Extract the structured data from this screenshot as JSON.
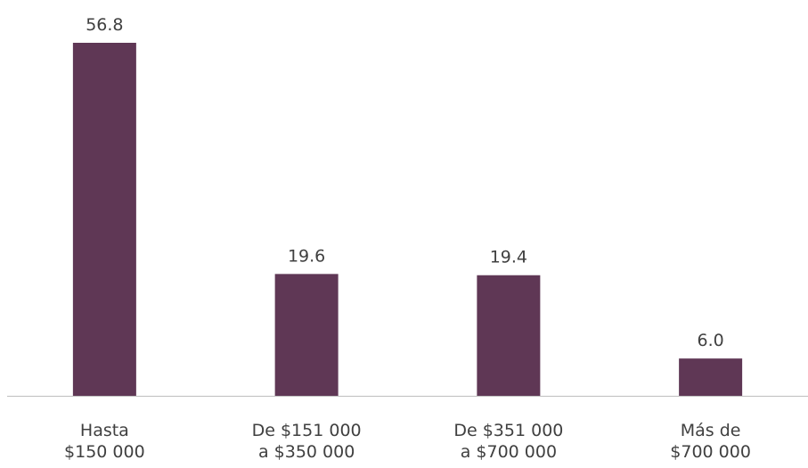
{
  "chart_data": {
    "type": "bar",
    "categories": [
      [
        "Hasta",
        "$150 000"
      ],
      [
        "De $151 000",
        "a $350 000"
      ],
      [
        "De $351 000",
        "a $700 000"
      ],
      [
        "Más de",
        "$700 000"
      ]
    ],
    "values": [
      56.8,
      19.6,
      19.4,
      6.0
    ],
    "value_labels": [
      "56.8",
      "19.6",
      "19.4",
      "6.0"
    ],
    "color": "#5f3755"
  }
}
